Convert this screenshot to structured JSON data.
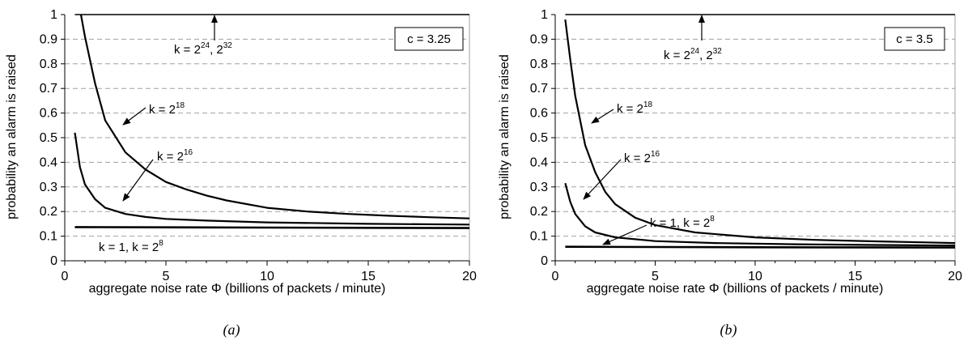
{
  "chart_data": [
    {
      "type": "line",
      "panel_label": "(a)",
      "xlabel": "aggregate noise rate Φ (billions of packets / minute)",
      "ylabel": "probability an alarm is raised",
      "xlim": [
        0,
        20
      ],
      "ylim": [
        0,
        1
      ],
      "xticks": [
        "0",
        "5",
        "10",
        "15",
        "20"
      ],
      "yticks": [
        "0",
        "0.1",
        "0.2",
        "0.3",
        "0.4",
        "0.5",
        "0.6",
        "0.7",
        "0.8",
        "0.9",
        "1"
      ],
      "grid": "horizontal dashed",
      "param_box": "c = 3.25",
      "series": [
        {
          "key": "k24",
          "points": [
            [
              0.5,
              1
            ],
            [
              20,
              1
            ]
          ]
        },
        {
          "key": "k18",
          "points": [
            [
              0.8,
              1
            ],
            [
              1,
              0.91
            ],
            [
              1.5,
              0.72
            ],
            [
              2,
              0.57
            ],
            [
              3,
              0.44
            ],
            [
              4,
              0.37
            ],
            [
              5,
              0.32
            ],
            [
              6,
              0.29
            ],
            [
              7,
              0.265
            ],
            [
              8,
              0.245
            ],
            [
              10,
              0.215
            ],
            [
              12,
              0.2
            ],
            [
              14,
              0.19
            ],
            [
              16,
              0.183
            ],
            [
              18,
              0.177
            ],
            [
              20,
              0.172
            ]
          ]
        },
        {
          "key": "k16",
          "points": [
            [
              0.5,
              0.52
            ],
            [
              0.75,
              0.38
            ],
            [
              1,
              0.31
            ],
            [
              1.5,
              0.25
            ],
            [
              2,
              0.215
            ],
            [
              3,
              0.19
            ],
            [
              4,
              0.178
            ],
            [
              5,
              0.17
            ],
            [
              7,
              0.163
            ],
            [
              10,
              0.156
            ],
            [
              15,
              0.15
            ],
            [
              20,
              0.147
            ]
          ]
        },
        {
          "key": "k1",
          "points": [
            [
              0.5,
              0.137
            ],
            [
              5,
              0.136
            ],
            [
              10,
              0.135
            ],
            [
              15,
              0.134
            ],
            [
              20,
              0.133
            ]
          ]
        }
      ],
      "annotations": [
        {
          "base": "k = 2",
          "exp": "24",
          "tail": ", 2",
          "exp2": "32"
        },
        {
          "base": "k = 2",
          "exp": "18"
        },
        {
          "base": "k = 2",
          "exp": "16"
        },
        {
          "base": "k = 1, k = 2",
          "exp": "8"
        }
      ]
    },
    {
      "type": "line",
      "panel_label": "(b)",
      "xlabel": "aggregate noise rate Φ (billions of packets / minute)",
      "ylabel": "probability an alarm is raised",
      "xlim": [
        0,
        20
      ],
      "ylim": [
        0,
        1
      ],
      "xticks": [
        "0",
        "5",
        "10",
        "15",
        "20"
      ],
      "yticks": [
        "0",
        "0.1",
        "0.2",
        "0.3",
        "0.4",
        "0.5",
        "0.6",
        "0.7",
        "0.8",
        "0.9",
        "1"
      ],
      "grid": "horizontal dashed",
      "param_box": "c = 3.5",
      "series": [
        {
          "key": "k24",
          "points": [
            [
              0.5,
              1
            ],
            [
              20,
              1
            ]
          ]
        },
        {
          "key": "k18",
          "points": [
            [
              0.5,
              0.98
            ],
            [
              0.75,
              0.82
            ],
            [
              1,
              0.67
            ],
            [
              1.5,
              0.47
            ],
            [
              2,
              0.36
            ],
            [
              2.5,
              0.28
            ],
            [
              3,
              0.23
            ],
            [
              4,
              0.175
            ],
            [
              5,
              0.145
            ],
            [
              7,
              0.115
            ],
            [
              10,
              0.095
            ],
            [
              13,
              0.085
            ],
            [
              16,
              0.079
            ],
            [
              20,
              0.072
            ]
          ]
        },
        {
          "key": "k16",
          "points": [
            [
              0.5,
              0.315
            ],
            [
              0.75,
              0.24
            ],
            [
              1,
              0.19
            ],
            [
              1.5,
              0.14
            ],
            [
              2,
              0.115
            ],
            [
              3,
              0.095
            ],
            [
              5,
              0.08
            ],
            [
              8,
              0.072
            ],
            [
              12,
              0.067
            ],
            [
              16,
              0.064
            ],
            [
              20,
              0.062
            ]
          ]
        },
        {
          "key": "k1",
          "points": [
            [
              0.5,
              0.057
            ],
            [
              5,
              0.056
            ],
            [
              10,
              0.055
            ],
            [
              20,
              0.054
            ]
          ]
        }
      ],
      "annotations": [
        {
          "base": "k = 2",
          "exp": "24",
          "tail": ", 2",
          "exp2": "32"
        },
        {
          "base": "k = 2",
          "exp": "18"
        },
        {
          "base": "k = 2",
          "exp": "16"
        },
        {
          "base": "k = 1, k = 2",
          "exp": "8"
        }
      ]
    }
  ]
}
